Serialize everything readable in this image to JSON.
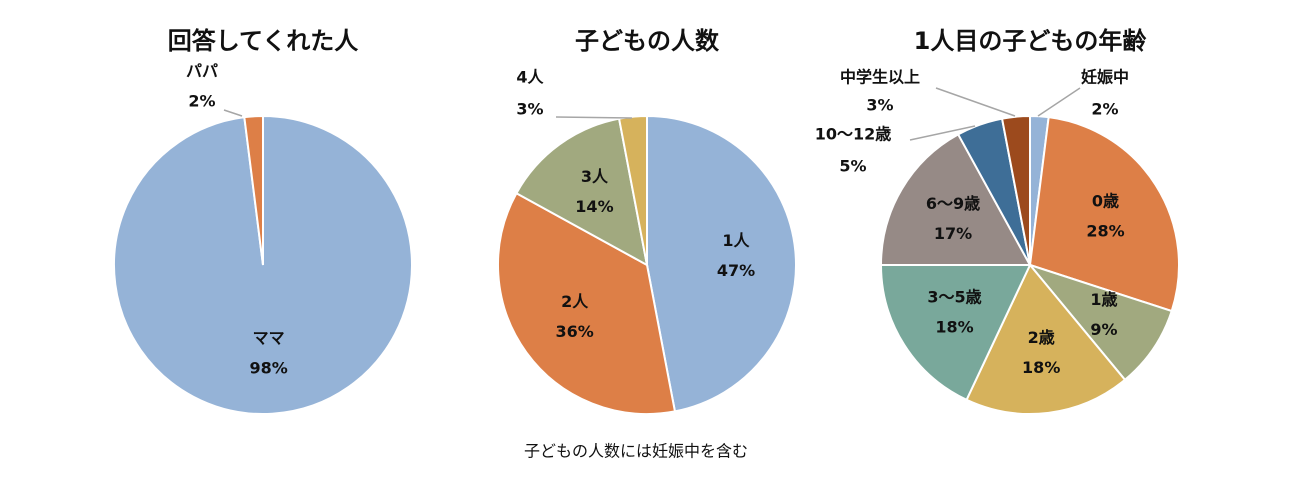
{
  "chart_data": [
    {
      "type": "pie",
      "title": "回答してくれた人",
      "categories": [
        "ママ",
        "パパ"
      ],
      "values": [
        98,
        2
      ],
      "value_labels": [
        "98%",
        "2%"
      ],
      "colors": [
        "#95b3d7",
        "#dd7f47"
      ]
    },
    {
      "type": "pie",
      "title": "子どもの人数",
      "categories": [
        "1人",
        "2人",
        "3人",
        "4人"
      ],
      "values": [
        47,
        36,
        14,
        3
      ],
      "value_labels": [
        "47%",
        "36%",
        "14%",
        "3%"
      ],
      "colors": [
        "#95b3d7",
        "#dd7f47",
        "#a1a97f",
        "#d6b25c"
      ],
      "footnote": "子どもの人数には妊娠中を含む"
    },
    {
      "type": "pie",
      "title": "1人目の子どもの年齢",
      "categories": [
        "妊娠中",
        "0歳",
        "1歳",
        "2歳",
        "3～5歳",
        "6～9歳",
        "10～12歳",
        "中学生以上"
      ],
      "values": [
        2,
        28,
        9,
        18,
        18,
        17,
        5,
        3
      ],
      "value_labels": [
        "2%",
        "28%",
        "9%",
        "18%",
        "18%",
        "17%",
        "5%",
        "3%"
      ],
      "colors": [
        "#95b3d7",
        "#dd7f47",
        "#a1a97f",
        "#d6b25c",
        "#79a89b",
        "#968a86",
        "#3e6e97",
        "#9c4a1d"
      ]
    }
  ]
}
